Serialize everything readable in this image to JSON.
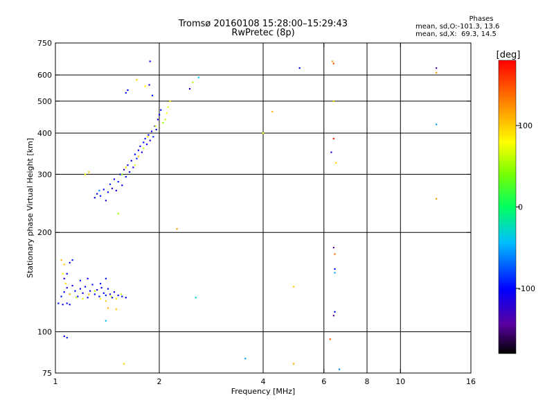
{
  "header": {
    "title_line1": "Tromsø 20160108 15:28:00–15:29:43",
    "title_line2": "RwPretec (8p)"
  },
  "phase_stats": {
    "title": "Phases",
    "line_o": "mean, sd,O:-101.3, 13.6",
    "line_x": "mean, sd,X:  69.3, 14.5"
  },
  "colorbar": {
    "label": "[deg]",
    "ticks": [
      "100",
      "0",
      "-100"
    ],
    "tick_values": [
      100,
      0,
      -100
    ],
    "range": [
      -180,
      180
    ]
  },
  "chart_data": {
    "type": "scatter",
    "xlabel": "Frequency [MHz]",
    "ylabel": "Stationary phase Virtual Height [km]",
    "xscale": "log",
    "yscale": "log",
    "xlim": [
      1,
      16
    ],
    "ylim": [
      75,
      750
    ],
    "x_ticks": [
      1,
      2,
      4,
      6,
      8,
      10,
      16
    ],
    "x_tick_labels": [
      "1",
      "2",
      "4",
      "6",
      "8",
      "10",
      "16"
    ],
    "y_ticks": [
      75,
      100,
      200,
      300,
      400,
      500,
      600,
      750
    ],
    "y_tick_labels": [
      "75",
      "100",
      "200",
      "300",
      "400",
      "500",
      "600",
      "750"
    ],
    "x_gridlines": [
      2,
      4,
      6,
      8,
      10
    ],
    "y_gridlines": [
      100,
      200,
      300,
      400,
      500,
      600
    ],
    "points": [
      {
        "x": 1.3,
        "y": 255,
        "p": -100
      },
      {
        "x": 1.32,
        "y": 262,
        "p": -110
      },
      {
        "x": 1.35,
        "y": 258,
        "p": -95
      },
      {
        "x": 1.38,
        "y": 270,
        "p": -105
      },
      {
        "x": 1.4,
        "y": 250,
        "p": -120
      },
      {
        "x": 1.42,
        "y": 265,
        "p": -100
      },
      {
        "x": 1.44,
        "y": 280,
        "p": -90
      },
      {
        "x": 1.46,
        "y": 272,
        "p": -115
      },
      {
        "x": 1.48,
        "y": 290,
        "p": -100
      },
      {
        "x": 1.5,
        "y": 268,
        "p": -105
      },
      {
        "x": 1.52,
        "y": 285,
        "p": -95
      },
      {
        "x": 1.54,
        "y": 300,
        "p": -110
      },
      {
        "x": 1.56,
        "y": 278,
        "p": -100
      },
      {
        "x": 1.58,
        "y": 310,
        "p": -120
      },
      {
        "x": 1.6,
        "y": 295,
        "p": -100
      },
      {
        "x": 1.62,
        "y": 320,
        "p": -105
      },
      {
        "x": 1.64,
        "y": 305,
        "p": -95
      },
      {
        "x": 1.66,
        "y": 330,
        "p": -100
      },
      {
        "x": 1.68,
        "y": 315,
        "p": -110
      },
      {
        "x": 1.7,
        "y": 345,
        "p": -100
      },
      {
        "x": 1.72,
        "y": 335,
        "p": -90
      },
      {
        "x": 1.74,
        "y": 355,
        "p": -105
      },
      {
        "x": 1.76,
        "y": 365,
        "p": -100
      },
      {
        "x": 1.78,
        "y": 350,
        "p": -115
      },
      {
        "x": 1.8,
        "y": 375,
        "p": -100
      },
      {
        "x": 1.82,
        "y": 385,
        "p": -95
      },
      {
        "x": 1.84,
        "y": 370,
        "p": -105
      },
      {
        "x": 1.86,
        "y": 395,
        "p": -100
      },
      {
        "x": 1.88,
        "y": 380,
        "p": -110
      },
      {
        "x": 1.9,
        "y": 405,
        "p": -100
      },
      {
        "x": 1.92,
        "y": 390,
        "p": -90
      },
      {
        "x": 1.94,
        "y": 420,
        "p": -105
      },
      {
        "x": 1.96,
        "y": 410,
        "p": -100
      },
      {
        "x": 1.98,
        "y": 440,
        "p": -110
      },
      {
        "x": 2.0,
        "y": 455,
        "p": -100
      },
      {
        "x": 2.02,
        "y": 470,
        "p": -95
      },
      {
        "x": 1.91,
        "y": 520,
        "p": -100
      },
      {
        "x": 1.87,
        "y": 560,
        "p": -110
      },
      {
        "x": 1.88,
        "y": 660,
        "p": -105
      },
      {
        "x": 1.62,
        "y": 540,
        "p": -100
      },
      {
        "x": 1.6,
        "y": 530,
        "p": -95
      },
      {
        "x": 1.34,
        "y": 268,
        "p": -60
      },
      {
        "x": 1.56,
        "y": 300,
        "p": 40
      },
      {
        "x": 1.6,
        "y": 315,
        "p": 90
      },
      {
        "x": 1.7,
        "y": 320,
        "p": 70
      },
      {
        "x": 1.74,
        "y": 340,
        "p": 100
      },
      {
        "x": 1.8,
        "y": 360,
        "p": 60
      },
      {
        "x": 1.85,
        "y": 390,
        "p": 90
      },
      {
        "x": 1.95,
        "y": 420,
        "p": 70
      },
      {
        "x": 2.05,
        "y": 430,
        "p": 50
      },
      {
        "x": 2.08,
        "y": 440,
        "p": 60
      },
      {
        "x": 2.1,
        "y": 460,
        "p": 80
      },
      {
        "x": 2.12,
        "y": 480,
        "p": 70
      },
      {
        "x": 2.15,
        "y": 500,
        "p": 90
      },
      {
        "x": 1.72,
        "y": 580,
        "p": 100
      },
      {
        "x": 1.82,
        "y": 555,
        "p": 80
      },
      {
        "x": 2.5,
        "y": 570,
        "p": 60
      },
      {
        "x": 2.6,
        "y": 590,
        "p": -40
      },
      {
        "x": 2.45,
        "y": 545,
        "p": -110
      },
      {
        "x": 1.52,
        "y": 228,
        "p": 50
      },
      {
        "x": 1.22,
        "y": 300,
        "p": 80
      },
      {
        "x": 1.25,
        "y": 305,
        "p": 100
      },
      {
        "x": 2.25,
        "y": 205,
        "p": 120
      },
      {
        "x": 4.0,
        "y": 400,
        "p": 80
      },
      {
        "x": 4.25,
        "y": 465,
        "p": 110
      },
      {
        "x": 5.1,
        "y": 630,
        "p": -100
      },
      {
        "x": 1.02,
        "y": 122,
        "p": -100
      },
      {
        "x": 1.05,
        "y": 121,
        "p": -105
      },
      {
        "x": 1.08,
        "y": 122,
        "p": -110
      },
      {
        "x": 1.1,
        "y": 121,
        "p": -100
      },
      {
        "x": 1.04,
        "y": 128,
        "p": -95
      },
      {
        "x": 1.06,
        "y": 132,
        "p": -100
      },
      {
        "x": 1.08,
        "y": 136,
        "p": -110
      },
      {
        "x": 1.1,
        "y": 130,
        "p": -100
      },
      {
        "x": 1.12,
        "y": 138,
        "p": -105
      },
      {
        "x": 1.14,
        "y": 133,
        "p": -100
      },
      {
        "x": 1.16,
        "y": 128,
        "p": -95
      },
      {
        "x": 1.18,
        "y": 135,
        "p": -100
      },
      {
        "x": 1.2,
        "y": 131,
        "p": -110
      },
      {
        "x": 1.22,
        "y": 137,
        "p": -100
      },
      {
        "x": 1.24,
        "y": 127,
        "p": -105
      },
      {
        "x": 1.26,
        "y": 133,
        "p": -100
      },
      {
        "x": 1.28,
        "y": 139,
        "p": -95
      },
      {
        "x": 1.3,
        "y": 130,
        "p": -100
      },
      {
        "x": 1.32,
        "y": 134,
        "p": -110
      },
      {
        "x": 1.34,
        "y": 128,
        "p": -100
      },
      {
        "x": 1.36,
        "y": 136,
        "p": -105
      },
      {
        "x": 1.38,
        "y": 131,
        "p": -100
      },
      {
        "x": 1.4,
        "y": 129,
        "p": -95
      },
      {
        "x": 1.42,
        "y": 135,
        "p": -100
      },
      {
        "x": 1.44,
        "y": 130,
        "p": -110
      },
      {
        "x": 1.46,
        "y": 127,
        "p": -100
      },
      {
        "x": 1.48,
        "y": 132,
        "p": -100
      },
      {
        "x": 1.52,
        "y": 129,
        "p": -105
      },
      {
        "x": 1.56,
        "y": 128,
        "p": -100
      },
      {
        "x": 1.6,
        "y": 127,
        "p": -100
      },
      {
        "x": 1.08,
        "y": 150,
        "p": -100
      },
      {
        "x": 1.1,
        "y": 162,
        "p": -105
      },
      {
        "x": 1.12,
        "y": 165,
        "p": -100
      },
      {
        "x": 1.06,
        "y": 145,
        "p": -110
      },
      {
        "x": 1.35,
        "y": 140,
        "p": -100
      },
      {
        "x": 1.4,
        "y": 145,
        "p": -95
      },
      {
        "x": 1.18,
        "y": 143,
        "p": -100
      },
      {
        "x": 1.24,
        "y": 145,
        "p": -105
      },
      {
        "x": 1.06,
        "y": 97,
        "p": -100
      },
      {
        "x": 1.08,
        "y": 96,
        "p": -95
      },
      {
        "x": 1.4,
        "y": 108,
        "p": -40
      },
      {
        "x": 1.05,
        "y": 150,
        "p": 80
      },
      {
        "x": 1.07,
        "y": 140,
        "p": 90
      },
      {
        "x": 1.1,
        "y": 130,
        "p": 100
      },
      {
        "x": 1.15,
        "y": 127,
        "p": 60
      },
      {
        "x": 1.2,
        "y": 126,
        "p": 70
      },
      {
        "x": 1.25,
        "y": 130,
        "p": 100
      },
      {
        "x": 1.3,
        "y": 133,
        "p": 60
      },
      {
        "x": 1.35,
        "y": 126,
        "p": 80
      },
      {
        "x": 1.4,
        "y": 124,
        "p": 100
      },
      {
        "x": 1.45,
        "y": 128,
        "p": 70
      },
      {
        "x": 1.5,
        "y": 126,
        "p": 90
      },
      {
        "x": 1.55,
        "y": 130,
        "p": 60
      },
      {
        "x": 1.04,
        "y": 165,
        "p": 110
      },
      {
        "x": 1.06,
        "y": 160,
        "p": 100
      },
      {
        "x": 1.42,
        "y": 118,
        "p": 110
      },
      {
        "x": 1.5,
        "y": 117,
        "p": 100
      },
      {
        "x": 1.58,
        "y": 80,
        "p": 100
      },
      {
        "x": 2.55,
        "y": 127,
        "p": -30
      },
      {
        "x": 3.55,
        "y": 83,
        "p": -50
      },
      {
        "x": 4.9,
        "y": 80,
        "p": 110
      },
      {
        "x": 4.9,
        "y": 137,
        "p": 100
      },
      {
        "x": 6.35,
        "y": 660,
        "p": 120
      },
      {
        "x": 6.4,
        "y": 650,
        "p": 150
      },
      {
        "x": 6.4,
        "y": 500,
        "p": 100
      },
      {
        "x": 6.4,
        "y": 385,
        "p": 170
      },
      {
        "x": 6.3,
        "y": 350,
        "p": -110
      },
      {
        "x": 6.5,
        "y": 325,
        "p": 100
      },
      {
        "x": 6.4,
        "y": 180,
        "p": -140
      },
      {
        "x": 6.45,
        "y": 172,
        "p": 140
      },
      {
        "x": 6.45,
        "y": 155,
        "p": -100
      },
      {
        "x": 6.45,
        "y": 151,
        "p": -50
      },
      {
        "x": 6.45,
        "y": 115,
        "p": -100
      },
      {
        "x": 6.4,
        "y": 112,
        "p": -140
      },
      {
        "x": 6.25,
        "y": 95,
        "p": 150
      },
      {
        "x": 6.65,
        "y": 77,
        "p": -60
      },
      {
        "x": 12.7,
        "y": 630,
        "p": -140
      },
      {
        "x": 12.7,
        "y": 610,
        "p": 120
      },
      {
        "x": 12.7,
        "y": 425,
        "p": -50
      },
      {
        "x": 12.7,
        "y": 253,
        "p": 120
      }
    ]
  }
}
